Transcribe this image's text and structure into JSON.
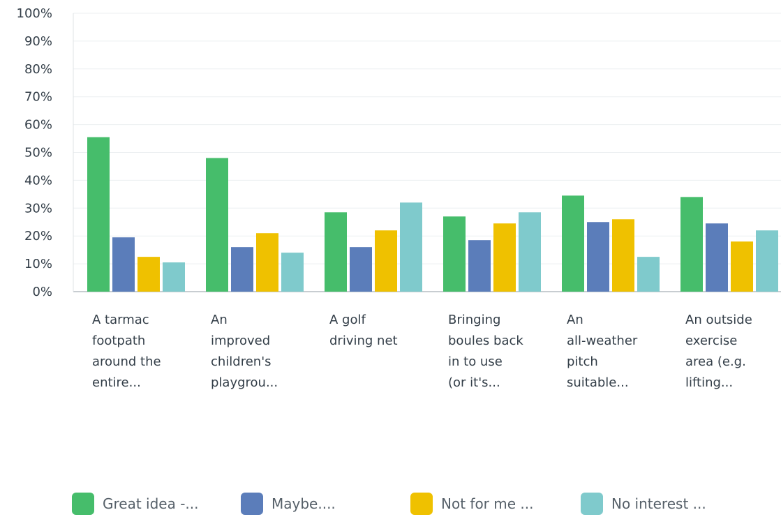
{
  "chart_data": {
    "type": "bar",
    "categories": [
      "A tarmac\nfootpath\naround the\nentire...",
      "An\nimproved\nchildren's\nplaygrou...",
      "A golf\ndriving net",
      "Bringing\nboules back\nin to use\n(or it's...",
      "An\nall-weather\npitch\nsuitable...",
      "An outside\nexercise\narea (e.g.\nlifting..."
    ],
    "series": [
      {
        "name": "Great idea -...",
        "color": "#46bd6b",
        "values": [
          55.5,
          48.0,
          28.5,
          27.0,
          34.5,
          34.0
        ]
      },
      {
        "name": "Maybe....",
        "color": "#5b7dba",
        "values": [
          19.5,
          16.0,
          16.0,
          18.5,
          25.0,
          24.5
        ]
      },
      {
        "name": "Not for me ...",
        "color": "#efc100",
        "values": [
          12.5,
          21.0,
          22.0,
          24.5,
          26.0,
          18.0
        ]
      },
      {
        "name": "No interest ...",
        "color": "#7fcacc",
        "values": [
          10.5,
          14.0,
          32.0,
          28.5,
          12.5,
          22.0
        ]
      }
    ],
    "ylim": [
      0,
      100
    ],
    "yticks": [
      "0%",
      "10%",
      "20%",
      "30%",
      "40%",
      "50%",
      "60%",
      "70%",
      "80%",
      "90%",
      "100%"
    ],
    "grid": true,
    "legend_position": "bottom",
    "title": "",
    "xlabel": "",
    "ylabel": ""
  }
}
